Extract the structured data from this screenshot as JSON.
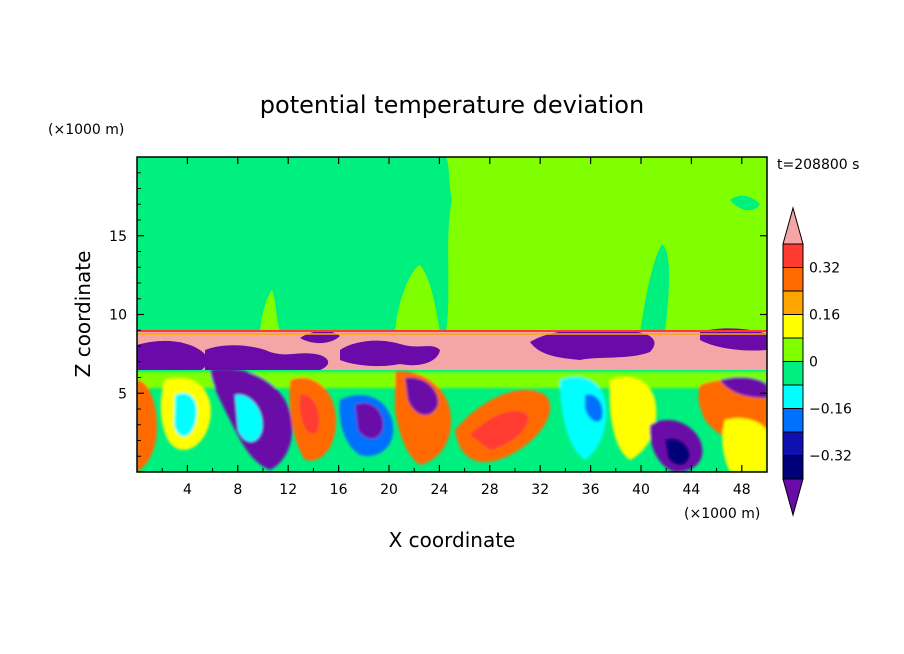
{
  "chart_data": {
    "type": "heatmap",
    "title": "potential temperature deviation",
    "xlabel": "X coordinate",
    "ylabel": "Z coordinate",
    "x_unit": "(×1000 m)",
    "y_unit": "(×1000 m)",
    "time_label": "t=208800 s",
    "xlim": [
      0,
      50
    ],
    "ylim": [
      0,
      20
    ],
    "x_ticks": [
      4,
      8,
      12,
      16,
      20,
      24,
      28,
      32,
      36,
      40,
      44,
      48
    ],
    "y_ticks": [
      5,
      10,
      15
    ],
    "colorbar": {
      "labels": [
        "0.32",
        "0.16",
        "0",
        "−0.16",
        "−0.32"
      ],
      "label_values": [
        0.32,
        0.16,
        0,
        -0.16,
        -0.32
      ],
      "bands": [
        {
          "from": 0.4,
          "to": null,
          "color": "#f4a6a6"
        },
        {
          "from": 0.32,
          "to": 0.4,
          "color": "#ff3b30"
        },
        {
          "from": 0.24,
          "to": 0.32,
          "color": "#ff6a00"
        },
        {
          "from": 0.16,
          "to": 0.24,
          "color": "#ffa500"
        },
        {
          "from": 0.08,
          "to": 0.16,
          "color": "#ffff00"
        },
        {
          "from": 0.0,
          "to": 0.08,
          "color": "#80ff00"
        },
        {
          "from": -0.08,
          "to": 0.0,
          "color": "#00f080"
        },
        {
          "from": -0.16,
          "to": -0.08,
          "color": "#00ffff"
        },
        {
          "from": -0.24,
          "to": -0.16,
          "color": "#0070ff"
        },
        {
          "from": -0.32,
          "to": -0.24,
          "color": "#1010b0"
        },
        {
          "from": -0.4,
          "to": -0.32,
          "color": "#00007a"
        },
        {
          "from": null,
          "to": -0.4,
          "color": "#6a0aa8"
        }
      ]
    },
    "field_regions": [
      {
        "value": -0.04,
        "x": [
          0,
          24.5
        ],
        "z": [
          9.2,
          19.8
        ]
      },
      {
        "value": 0.04,
        "x": [
          24.5,
          50
        ],
        "z": [
          9.2,
          19.8
        ]
      },
      {
        "value": 0.45,
        "x": [
          0,
          50
        ],
        "z": [
          7.0,
          9.2
        ]
      },
      {
        "value": -0.45,
        "x": [
          0,
          50
        ],
        "z": [
          6.5,
          8.3
        ]
      },
      {
        "value": -0.1,
        "x": [
          0,
          50
        ],
        "z": [
          0,
          6.5
        ]
      }
    ]
  }
}
